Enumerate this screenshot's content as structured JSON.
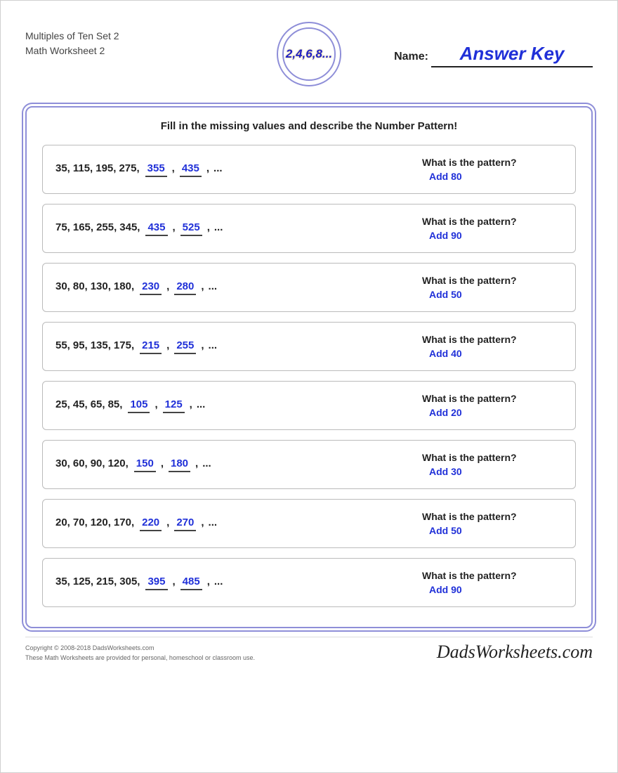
{
  "colors": {
    "accent_border": "#8e8ed8",
    "answer_blue": "#2030d8",
    "text_dark": "#222222",
    "box_border": "#bbbbbb",
    "page_border": "#d0d0d0"
  },
  "header": {
    "title_line1": "Multiples of Ten Set 2",
    "title_line2": "Math Worksheet 2",
    "badge_text": "2,4,6,8...",
    "name_label": "Name:",
    "answer_key": "Answer Key"
  },
  "instruction": "Fill in the missing values and describe the Number Pattern!",
  "pattern_question": "What is the pattern?",
  "ellipsis": "...",
  "problems": [
    {
      "given": [
        "35",
        "115",
        "195",
        "275"
      ],
      "answers": [
        "355",
        "435"
      ],
      "pattern": "Add 80"
    },
    {
      "given": [
        "75",
        "165",
        "255",
        "345"
      ],
      "answers": [
        "435",
        "525"
      ],
      "pattern": "Add 90"
    },
    {
      "given": [
        "30",
        "80",
        "130",
        "180"
      ],
      "answers": [
        "230",
        "280"
      ],
      "pattern": "Add 50"
    },
    {
      "given": [
        "55",
        "95",
        "135",
        "175"
      ],
      "answers": [
        "215",
        "255"
      ],
      "pattern": "Add 40"
    },
    {
      "given": [
        "25",
        "45",
        "65",
        "85"
      ],
      "answers": [
        "105",
        "125"
      ],
      "pattern": "Add 20"
    },
    {
      "given": [
        "30",
        "60",
        "90",
        "120"
      ],
      "answers": [
        "150",
        "180"
      ],
      "pattern": "Add 30"
    },
    {
      "given": [
        "20",
        "70",
        "120",
        "170"
      ],
      "answers": [
        "220",
        "270"
      ],
      "pattern": "Add 50"
    },
    {
      "given": [
        "35",
        "125",
        "215",
        "305"
      ],
      "answers": [
        "395",
        "485"
      ],
      "pattern": "Add 90"
    }
  ],
  "footer": {
    "copyright_line1": "Copyright © 2008-2018 DadsWorksheets.com",
    "copyright_line2": "These Math Worksheets are provided for personal, homeschool or classroom use.",
    "brand": "DadsWorksheets.com"
  }
}
